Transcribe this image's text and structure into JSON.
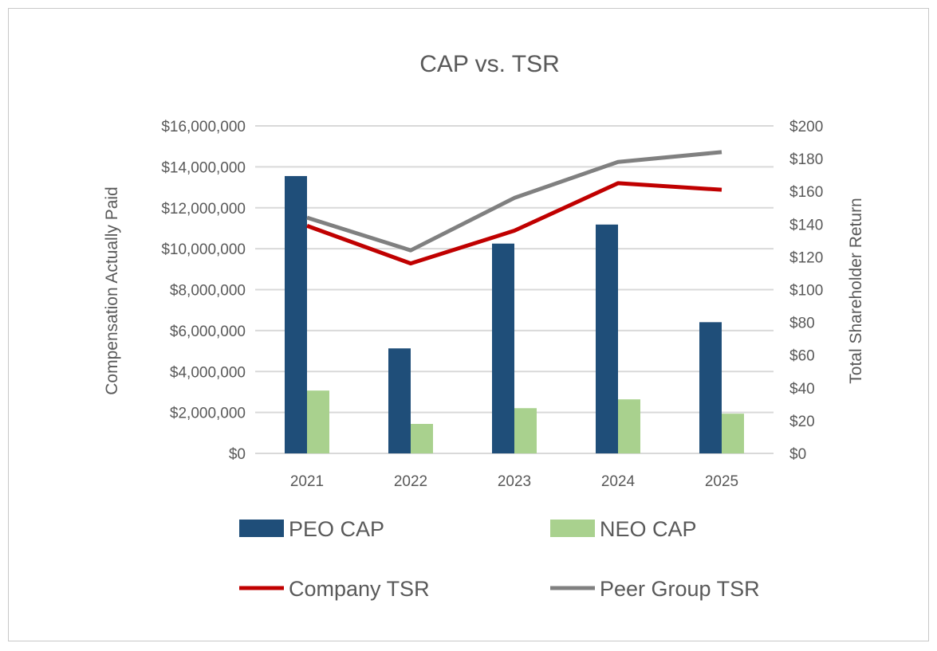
{
  "chart_data": {
    "type": "bar",
    "title": "CAP vs. TSR",
    "categories": [
      "2021",
      "2022",
      "2023",
      "2024",
      "2025"
    ],
    "ylabel": "Compensation Actually Paid",
    "y2label": "Total Shareholder Return",
    "ylim": [
      0,
      16000000
    ],
    "y2lim": [
      0,
      200
    ],
    "yticks": [
      "$0",
      "$2,000,000",
      "$4,000,000",
      "$6,000,000",
      "$8,000,000",
      "$10,000,000",
      "$12,000,000",
      "$14,000,000",
      "$16,000,000"
    ],
    "y2ticks": [
      "$0",
      "$20",
      "$40",
      "$60",
      "$80",
      "$100",
      "$120",
      "$140",
      "$160",
      "$180",
      "$200"
    ],
    "grid": true,
    "legend_position": "bottom",
    "series": [
      {
        "name": "PEO CAP",
        "type": "bar",
        "axis": "left",
        "color": "#1f4e79",
        "values": [
          13550000,
          5130000,
          10250000,
          11180000,
          6410000
        ]
      },
      {
        "name": "NEO CAP",
        "type": "bar",
        "axis": "left",
        "color": "#a9d18e",
        "values": [
          3070000,
          1440000,
          2210000,
          2640000,
          1940000
        ]
      },
      {
        "name": "Company TSR",
        "type": "line",
        "axis": "right",
        "color": "#c00000",
        "values": [
          139,
          116,
          136,
          165,
          161
        ]
      },
      {
        "name": "Peer Group TSR",
        "type": "line",
        "axis": "right",
        "color": "#808080",
        "values": [
          144,
          124,
          156,
          178,
          184
        ]
      }
    ]
  }
}
